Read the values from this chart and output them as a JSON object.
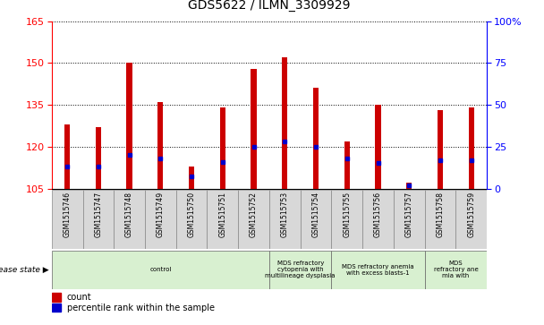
{
  "title": "GDS5622 / ILMN_3309929",
  "samples": [
    "GSM1515746",
    "GSM1515747",
    "GSM1515748",
    "GSM1515749",
    "GSM1515750",
    "GSM1515751",
    "GSM1515752",
    "GSM1515753",
    "GSM1515754",
    "GSM1515755",
    "GSM1515756",
    "GSM1515757",
    "GSM1515758",
    "GSM1515759"
  ],
  "count_values": [
    128,
    127,
    150,
    136,
    113,
    134,
    148,
    152,
    141,
    122,
    135,
    107,
    133,
    134
  ],
  "count_base": 105,
  "percentile_values": [
    13,
    13,
    20,
    18,
    7,
    16,
    25,
    28,
    25,
    18,
    15,
    2,
    17,
    17
  ],
  "ylim_left": [
    105,
    165
  ],
  "ylim_right": [
    0,
    100
  ],
  "yticks_left": [
    105,
    120,
    135,
    150,
    165
  ],
  "yticks_right": [
    0,
    25,
    50,
    75,
    100
  ],
  "bar_color": "#cc0000",
  "percentile_color": "#0000cc",
  "bar_width": 0.18,
  "disease_groups": [
    {
      "label": "control",
      "start": 0,
      "end": 7,
      "color": "#d8f0d0"
    },
    {
      "label": "MDS refractory\ncytopenia with\nmultilineage dysplasia",
      "start": 7,
      "end": 9,
      "color": "#d8f0d0"
    },
    {
      "label": "MDS refractory anemia\nwith excess blasts-1",
      "start": 9,
      "end": 12,
      "color": "#d8f0d0"
    },
    {
      "label": "MDS\nrefractory ane\nmia with",
      "start": 12,
      "end": 14,
      "color": "#d8f0d0"
    }
  ],
  "disease_state_label": "disease state",
  "legend_count_label": "count",
  "legend_percentile_label": "percentile rank within the sample"
}
